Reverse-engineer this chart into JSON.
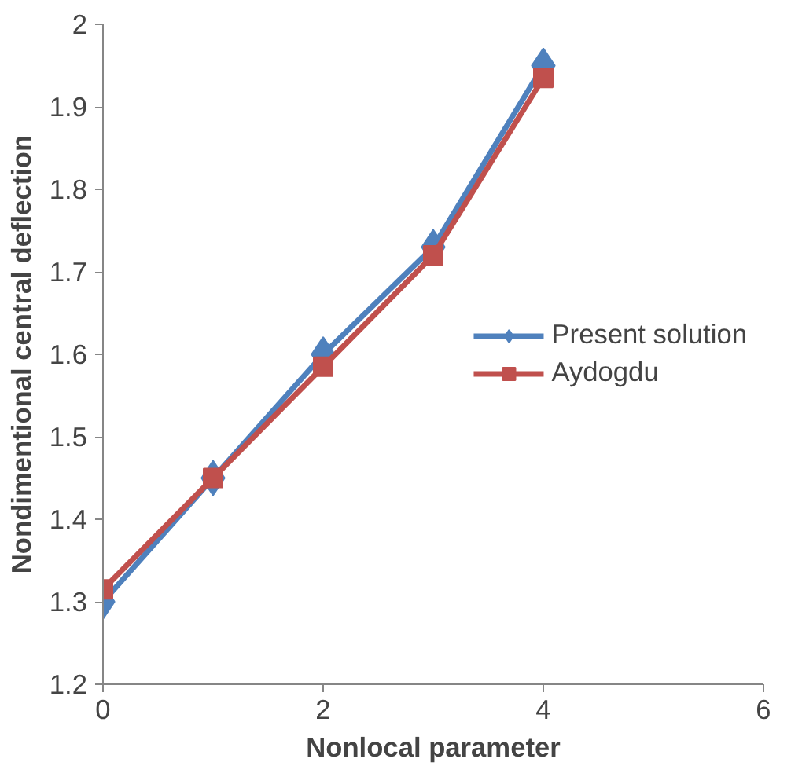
{
  "chart_data": {
    "type": "line",
    "xlabel": "Nonlocal parameter",
    "ylabel": "Nondimentional central deflection",
    "x": [
      0,
      1,
      2,
      3,
      4
    ],
    "xlim": [
      0,
      6
    ],
    "xticks": [
      0,
      2,
      4,
      6
    ],
    "ylim": [
      1.2,
      2
    ],
    "yticks": [
      1.2,
      1.3,
      1.4,
      1.5,
      1.6,
      1.7,
      1.8,
      1.9,
      2
    ],
    "grid": false,
    "legend": "right",
    "line_style": "solid",
    "series": [
      {
        "name": "Present solution",
        "color": "#4f81bd",
        "marker": "diamond",
        "values": [
          1.3,
          1.45,
          1.6,
          1.73,
          1.95
        ]
      },
      {
        "name": "Aydogdu",
        "color": "#c0504d",
        "marker": "square",
        "values": [
          1.315,
          1.45,
          1.585,
          1.72,
          1.935
        ]
      }
    ]
  }
}
